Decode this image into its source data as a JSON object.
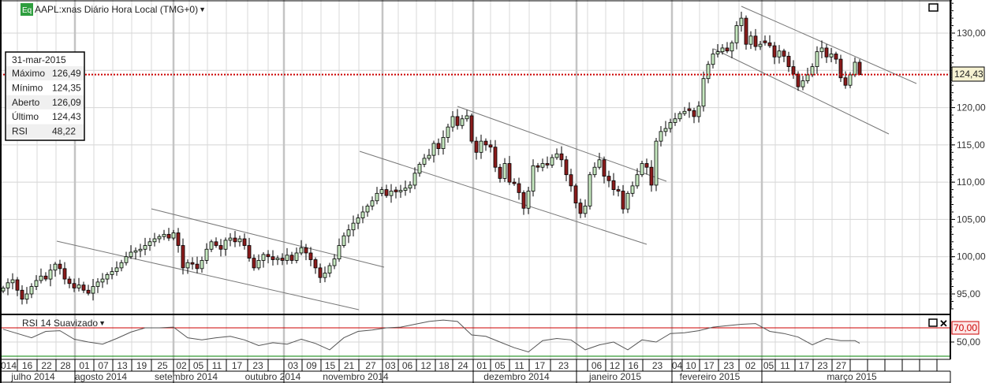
{
  "header": {
    "badge": "Eq",
    "title": "AAPL:xnas Diário Hora Local (TMG+0)",
    "dropdown_icon": "caret-down-icon"
  },
  "info_box": {
    "date": "31-mar-2015",
    "rows": [
      {
        "label": "Máximo",
        "value": "126,49"
      },
      {
        "label": "Mínimo",
        "value": "124,35"
      },
      {
        "label": "Aberto",
        "value": "126,09"
      },
      {
        "label": "Último",
        "value": "124,43"
      },
      {
        "label": "RSI",
        "value": "48,22"
      }
    ]
  },
  "price_axis": {
    "ticks": [
      "130,00",
      "125,00",
      "120,00",
      "115,00",
      "110,00",
      "105,00",
      "100,00",
      "95,00"
    ],
    "tick_values": [
      130,
      125,
      120,
      115,
      110,
      105,
      100,
      95
    ],
    "last_price_label": "124,43"
  },
  "rsi_panel": {
    "title": "RSI 14 Suavizado",
    "upper_level_label": "70,00",
    "mid_level_label": "50,00"
  },
  "date_axis": {
    "days": [
      "014",
      "16",
      "22",
      "28",
      "01",
      "07",
      "13",
      "19",
      "25",
      "02",
      "05",
      "11",
      "17",
      "23",
      "",
      "03",
      "09",
      "15",
      "21",
      "27",
      "03",
      "06",
      "12",
      "18",
      "24",
      "01",
      "05",
      "11",
      "17",
      "23",
      "",
      "06",
      "12",
      "16",
      "23",
      "04",
      "10",
      "17",
      "23",
      "02",
      "05",
      "11",
      "17",
      "23",
      "27",
      "",
      "",
      "",
      "",
      ""
    ],
    "months": [
      "julho 2014",
      "agosto 2014",
      "setembro 2014",
      "outubro 2014",
      "novembro 2014",
      "dezembro 2014",
      "janeiro 2015",
      "fevereiro 2015",
      "março 2015"
    ]
  },
  "colors": {
    "up_candle": "#c6e8c0",
    "down_candle": "#8b1c1c",
    "last_price_line": "#cc0000",
    "rsi_upper": "#cc0000",
    "rsi_lower": "#008000",
    "badge": "#2e9e3e"
  },
  "chart_data": {
    "type": "candlestick",
    "symbol": "AAPL:xnas",
    "ylim": [
      92,
      134
    ],
    "last_price": 124.43,
    "last_candle": {
      "date": "31-mar-2015",
      "high": 126.49,
      "low": 124.35,
      "open": 126.09,
      "close": 124.43
    },
    "closes": [
      95.8,
      96.5,
      96.9,
      95.5,
      94.3,
      95.0,
      96.0,
      96.8,
      97.4,
      97.0,
      98.2,
      99.0,
      98.4,
      97.0,
      96.4,
      95.8,
      96.2,
      95.5,
      95.1,
      96.0,
      96.6,
      97.0,
      97.6,
      98.0,
      98.5,
      99.2,
      100.0,
      100.6,
      100.8,
      101.0,
      101.5,
      102.0,
      102.4,
      102.7,
      103.0,
      102.5,
      103.2,
      101.5,
      98.5,
      99.2,
      99.0,
      98.4,
      99.5,
      101.0,
      102.0,
      101.5,
      101.0,
      102.2,
      102.5,
      102.0,
      102.4,
      101.5,
      99.8,
      98.5,
      99.5,
      100.3,
      100.0,
      99.6,
      99.8,
      99.5,
      100.2,
      99.5,
      100.5,
      101.2,
      100.5,
      99.6,
      98.5,
      97.2,
      97.8,
      98.8,
      99.7,
      101.5,
      102.8,
      103.6,
      104.5,
      105.2,
      106.0,
      106.8,
      107.5,
      108.5,
      109.0,
      108.2,
      108.8,
      108.7,
      108.9,
      109.2,
      109.6,
      111.2,
      112.4,
      113.2,
      113.6,
      115.2,
      114.5,
      116.0,
      117.4,
      118.8,
      117.6,
      118.5,
      118.9,
      115.5,
      114.0,
      115.5,
      115.0,
      114.7,
      112.0,
      110.5,
      112.5,
      110.0,
      109.8,
      108.6,
      106.5,
      108.8,
      112.2,
      112.0,
      112.5,
      112.3,
      113.3,
      113.8,
      113.0,
      111.0,
      109.5,
      107.2,
      105.8,
      106.8,
      111.0,
      112.0,
      113.0,
      110.8,
      110.2,
      109.0,
      108.8,
      106.4,
      108.5,
      109.5,
      111.0,
      112.5,
      112.0,
      109.6,
      115.5,
      116.8,
      117.2,
      118.0,
      118.5,
      119.2,
      119.5,
      119.6,
      118.8,
      120.2,
      123.9,
      125.8,
      127.2,
      127.5,
      128.0,
      127.6,
      128.7,
      131.0,
      132.0,
      128.5,
      129.6,
      128.2,
      128.5,
      128.7,
      128.3,
      126.8,
      127.6,
      126.9,
      125.5,
      124.5,
      122.8,
      123.6,
      124.4,
      125.5,
      127.5,
      128.0,
      126.8,
      127.2,
      126.5,
      124.0,
      123.0,
      124.4,
      126.09,
      124.43
    ],
    "rsi": {
      "period": 14,
      "levels": [
        70,
        50,
        30
      ],
      "values_every_3_sessions": [
        68,
        62,
        56,
        65,
        66,
        54,
        50,
        47,
        55,
        64,
        70,
        70,
        71,
        56,
        53,
        56,
        58,
        53,
        45,
        49,
        47,
        54,
        48,
        39,
        56,
        65,
        67,
        70,
        71,
        75,
        79,
        81,
        79,
        60,
        58,
        50,
        42,
        36,
        52,
        55,
        53,
        39,
        46,
        50,
        39,
        53,
        50,
        62,
        63,
        66,
        71,
        73,
        75,
        76,
        65,
        62,
        57,
        46,
        55,
        52,
        52,
        48.22
      ]
    }
  }
}
